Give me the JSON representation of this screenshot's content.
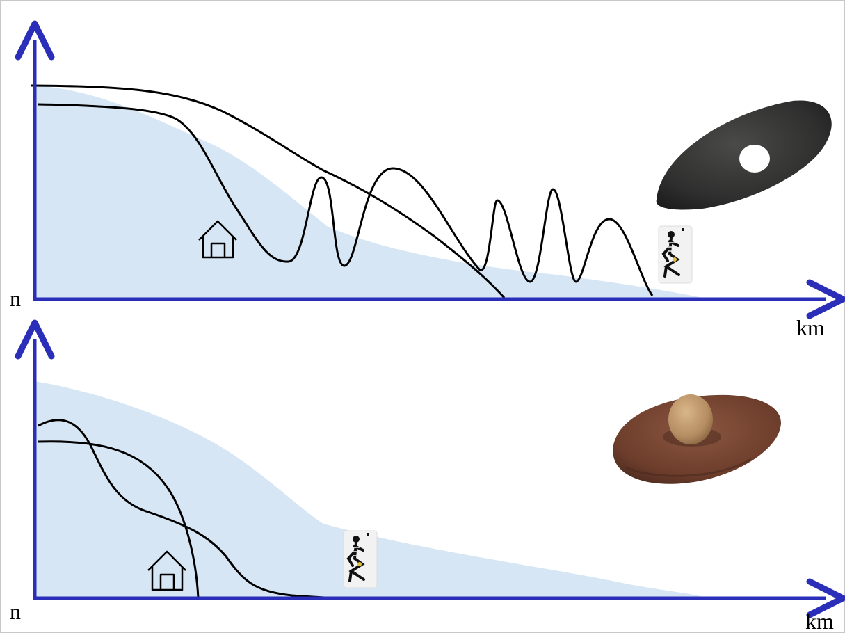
{
  "panels": [
    {
      "id": "top",
      "y_axis_label": "n",
      "x_axis_label": "km",
      "artifact_icon": "perforated-stone-axe",
      "settlement_icon": "house-icon",
      "burial_icon": "crouched-skeleton-icon"
    },
    {
      "id": "bottom",
      "y_axis_label": "n",
      "x_axis_label": "km",
      "artifact_icon": "grinding-stone-quern",
      "settlement_icon": "house-icon",
      "burial_icon": "crouched-skeleton-icon"
    }
  ],
  "colors": {
    "axis": "#2b2eb8",
    "area_fill": "#d6e6f4",
    "curve": "#000000",
    "axe_stone": "#2e2f2e",
    "quern_stone": "#6e3e2c",
    "grinding_ball": "#b58d62"
  }
}
